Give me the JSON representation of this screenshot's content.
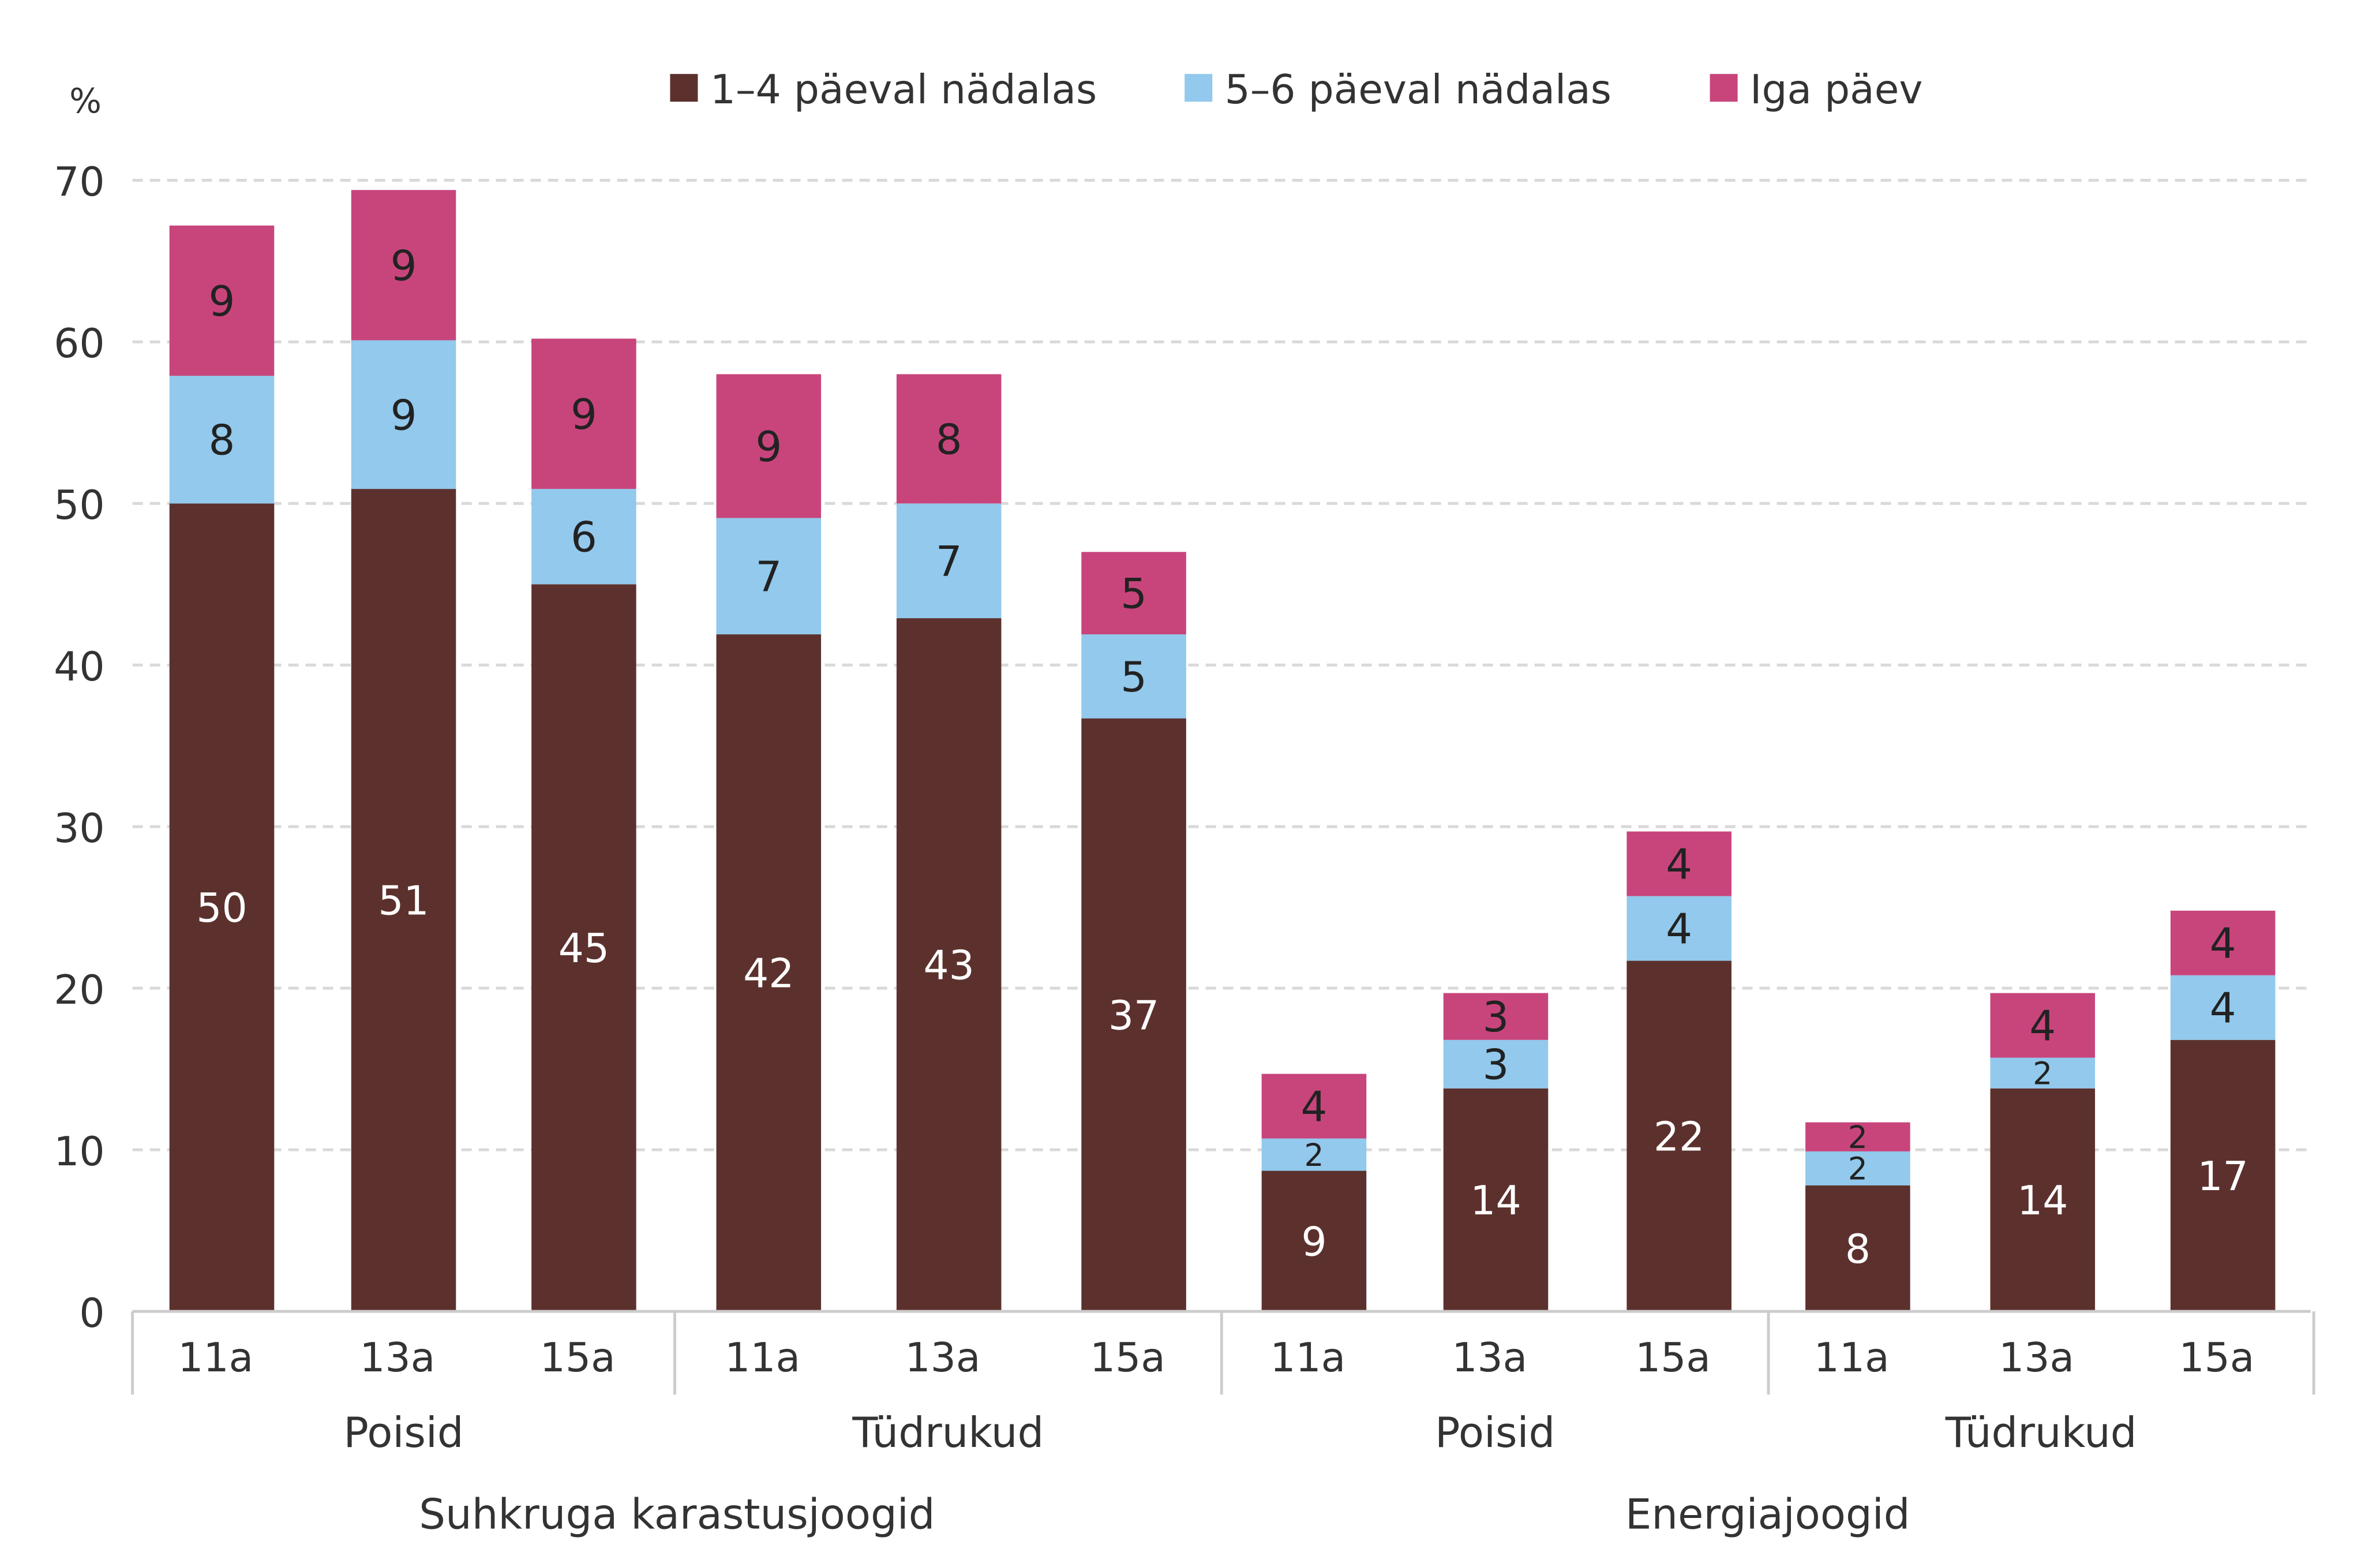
{
  "chart_data": {
    "type": "bar",
    "stacked": true,
    "y_unit_label": "%",
    "ylim": [
      0,
      70
    ],
    "yticks": [
      0,
      10,
      20,
      30,
      40,
      50,
      60,
      70
    ],
    "grid": true,
    "legend_position": "top",
    "categories": [
      "11a",
      "13a",
      "15a",
      "11a",
      "13a",
      "15a",
      "11a",
      "13a",
      "15a",
      "11a",
      "13a",
      "15a"
    ],
    "subgroups": [
      {
        "label": "Poisid",
        "from": 0,
        "to": 2
      },
      {
        "label": "Tüdrukud",
        "from": 3,
        "to": 5
      },
      {
        "label": "Poisid",
        "from": 6,
        "to": 8
      },
      {
        "label": "Tüdrukud",
        "from": 9,
        "to": 11
      }
    ],
    "groups": [
      {
        "label": "Suhkruga karastusjoogid",
        "from": 0,
        "to": 5
      },
      {
        "label": "Energiajoogid",
        "from": 6,
        "to": 11
      }
    ],
    "series": [
      {
        "name": "1–4 päeval nädalas",
        "color": "#5c312d",
        "label_color": "#ffffff",
        "values": [
          50,
          51,
          45,
          42,
          43,
          37,
          9,
          14,
          22,
          8,
          14,
          17
        ]
      },
      {
        "name": "5–6 päeval nädalas",
        "color": "#92c9ec",
        "label_color": "#222222",
        "values": [
          8,
          9,
          6,
          7,
          7,
          5,
          2,
          3,
          4,
          2,
          2,
          4
        ]
      },
      {
        "name": "Iga päev",
        "color": "#c8457c",
        "label_color": "#222222",
        "values": [
          9,
          9,
          9,
          9,
          8,
          5,
          4,
          3,
          4,
          2,
          4,
          4
        ]
      }
    ],
    "stack_totals": [
      67.2,
      69.4,
      60.2,
      58.0,
      58.0,
      47.0,
      14.7,
      19.7,
      29.7,
      11.7,
      19.7,
      24.8
    ],
    "stack_boundaries": [
      [
        50.0,
        57.9
      ],
      [
        50.9,
        60.1
      ],
      [
        45.0,
        50.9
      ],
      [
        41.9,
        49.1
      ],
      [
        42.9,
        50.0
      ],
      [
        36.7,
        41.9
      ],
      [
        8.7,
        10.7
      ],
      [
        13.8,
        16.8
      ],
      [
        21.7,
        25.7
      ],
      [
        7.8,
        9.9
      ],
      [
        13.8,
        15.7
      ],
      [
        16.8,
        20.8
      ]
    ]
  }
}
